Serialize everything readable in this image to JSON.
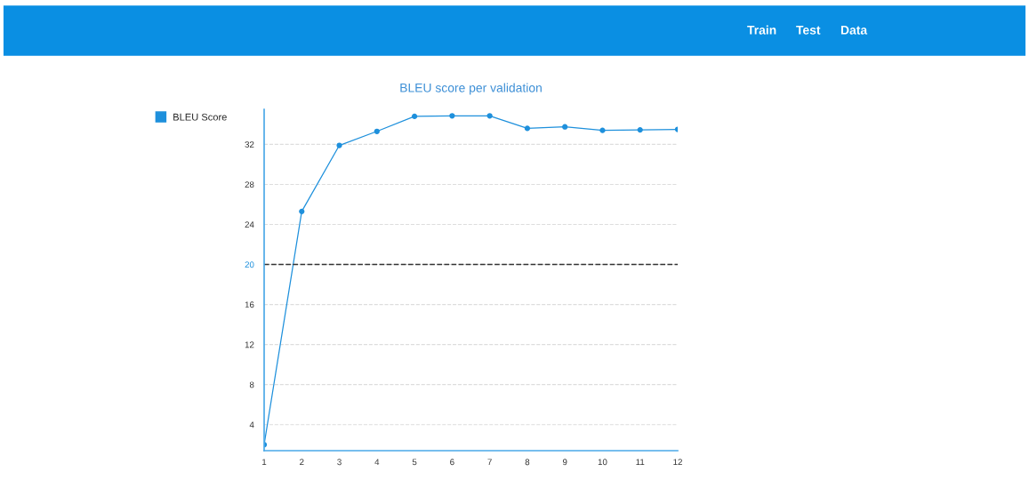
{
  "chart_data": {
    "type": "line",
    "title": "BLEU score per validation",
    "x": [
      1,
      2,
      3,
      4,
      5,
      6,
      7,
      8,
      9,
      10,
      11,
      12
    ],
    "series": [
      {
        "name": "BLEU Score",
        "color": "#1e90dc",
        "values": [
          2.0,
          25.3,
          31.9,
          33.3,
          34.8,
          34.85,
          34.85,
          33.6,
          33.75,
          33.4,
          33.45,
          33.5
        ]
      }
    ],
    "xlim": [
      1,
      12
    ],
    "xticks": [
      1,
      2,
      3,
      4,
      5,
      6,
      7,
      8,
      9,
      10,
      11,
      12
    ],
    "ylim": [
      1.4,
      35.5
    ],
    "yticks": [
      4,
      8,
      12,
      16,
      20,
      24,
      28,
      32
    ],
    "ref_lines": [
      {
        "axis": "y",
        "value": 20,
        "color": "#333333",
        "line_style": "dashed"
      }
    ],
    "grid": "y",
    "legend": "top left",
    "marker": "circle",
    "line_style": "solid",
    "annotations": [
      "Train",
      "Test",
      "Data"
    ]
  }
}
